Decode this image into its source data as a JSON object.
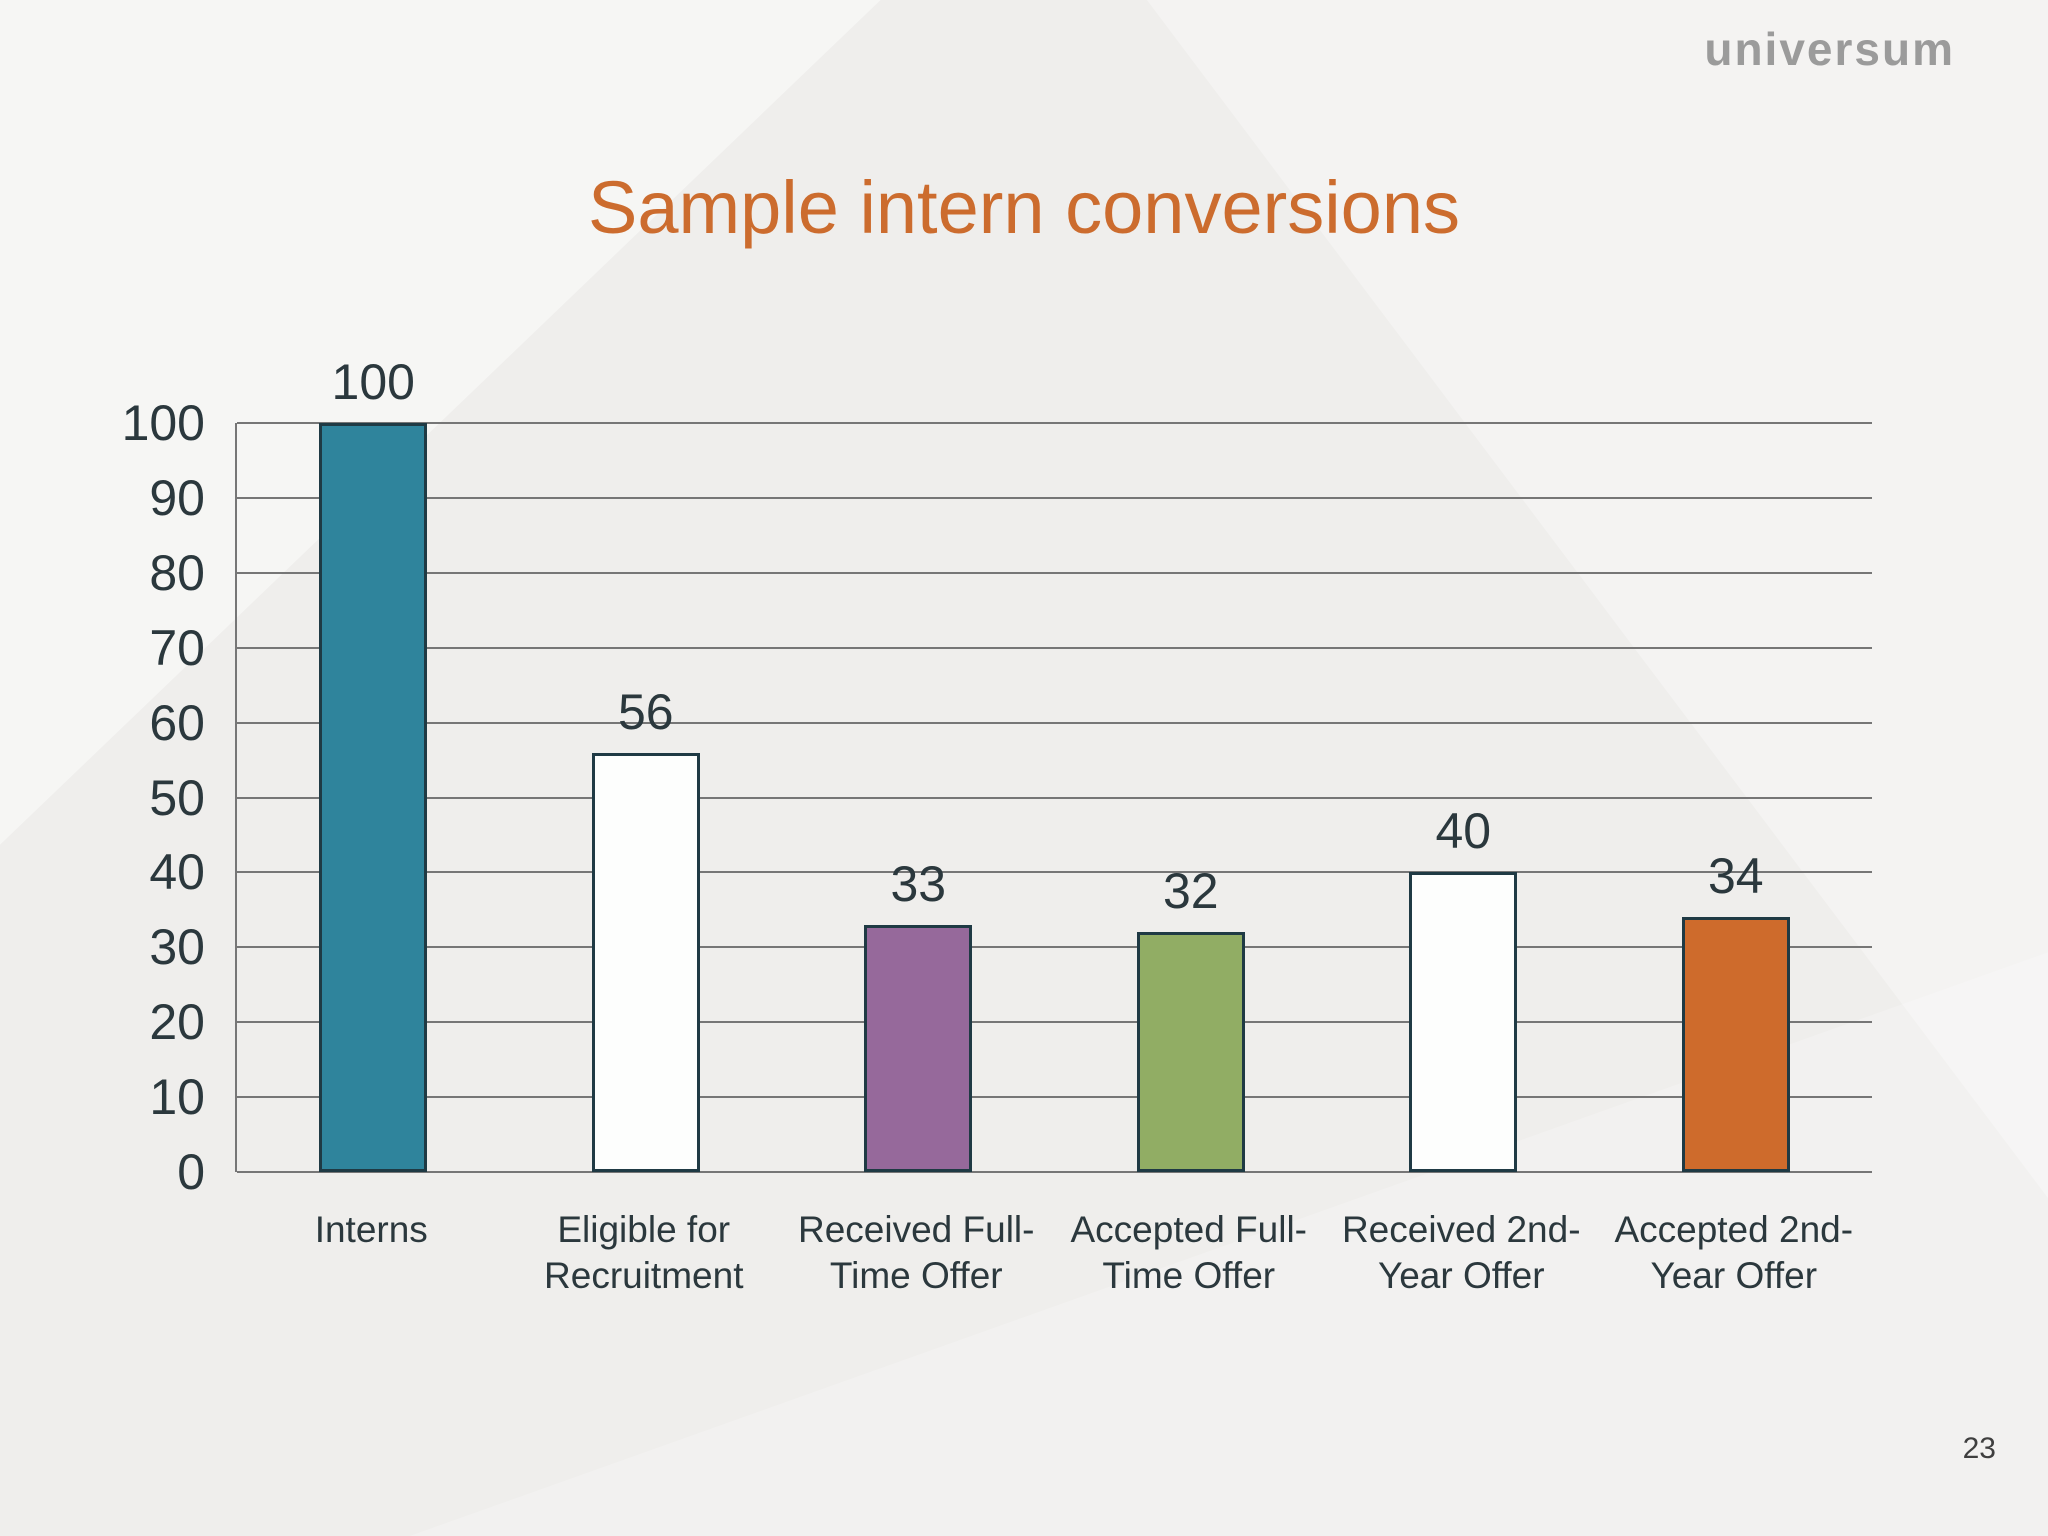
{
  "slide": {
    "logo": "universum",
    "title": "Sample intern conversions",
    "page_number": "23"
  },
  "chart_data": {
    "type": "bar",
    "title": "Sample intern conversions",
    "title_color": "#cc6c2e",
    "categories": [
      "Interns",
      "Eligible for Recruitment",
      "Received Full-Time Offer",
      "Accepted Full-Time Offer",
      "Received 2nd-Year Offer",
      "Accepted 2nd-Year Offer"
    ],
    "category_lines": [
      [
        "Interns"
      ],
      [
        "Eligible for",
        "Recruitment"
      ],
      [
        "Received Full-",
        "Time Offer"
      ],
      [
        "Accepted Full-",
        "Time Offer"
      ],
      [
        "Received 2nd-",
        "Year Offer"
      ],
      [
        "Accepted 2nd-",
        "Year Offer"
      ]
    ],
    "values": [
      100,
      56,
      33,
      32,
      40,
      34
    ],
    "bar_colors": [
      "#2f849c",
      "#fdfefd",
      "#96699b",
      "#91ad64",
      "#fdfefd",
      "#ce6b2c"
    ],
    "bar_border_color": "#1f3a44",
    "xlabel": "",
    "ylabel": "",
    "ylim": [
      0,
      100
    ],
    "ytick_step": 10,
    "grid": true,
    "gridline_color": "#767676",
    "legend": "none",
    "label_color": "#2b383d"
  }
}
